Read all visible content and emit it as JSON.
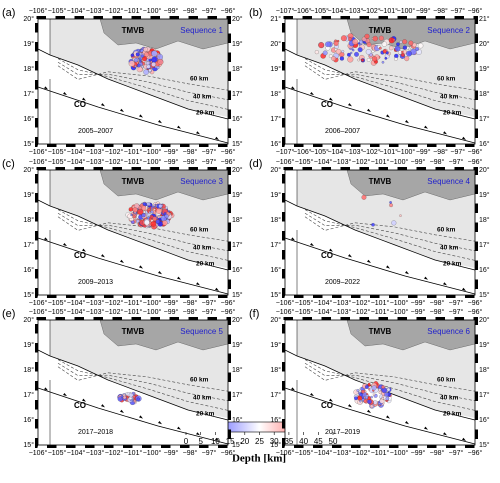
{
  "panels": [
    {
      "label": "(a)",
      "sequence": "Sequence 1",
      "period": "2005–2007",
      "lon_ticks": [
        "−106°",
        "−105°",
        "−104°",
        "−103°",
        "−102°",
        "−101°",
        "−100°",
        "−99°",
        "−98°",
        "−97°",
        "−96°"
      ],
      "lat_ticks": [
        "15°",
        "16°",
        "17°",
        "18°",
        "19°",
        "20°"
      ]
    },
    {
      "label": "(b)",
      "sequence": "Sequence 2",
      "period": "2006–2007",
      "lon_ticks": [
        "−107°",
        "−106°",
        "−105°",
        "−104°",
        "−103°",
        "−102°",
        "−101°",
        "−100°",
        "−99°",
        "−98°",
        "−97°",
        "−96°"
      ],
      "lat_ticks": [
        "16°",
        "17°",
        "18°",
        "19°",
        "20°",
        "21°"
      ]
    },
    {
      "label": "(c)",
      "sequence": "Sequence 3",
      "period": "2009–2013",
      "lon_ticks": [
        "−106°",
        "−105°",
        "−104°",
        "−103°",
        "−102°",
        "−101°",
        "−100°",
        "−99°",
        "−98°",
        "−97°",
        "−96°"
      ],
      "lat_ticks": [
        "15°",
        "16°",
        "17°",
        "18°",
        "19°",
        "20°"
      ]
    },
    {
      "label": "(d)",
      "sequence": "Sequence 4",
      "period": "2009–2022",
      "lon_ticks": [
        "−106°",
        "−105°",
        "−104°",
        "−103°",
        "−102°",
        "−101°",
        "−100°",
        "−99°",
        "−98°",
        "−97°",
        "−96°"
      ],
      "lat_ticks": [
        "15°",
        "16°",
        "17°",
        "18°",
        "19°",
        "20°"
      ]
    },
    {
      "label": "(e)",
      "sequence": "Sequence 5",
      "period": "2017–2018",
      "lon_ticks": [
        "−106°",
        "−105°",
        "−104°",
        "−103°",
        "−102°",
        "−101°",
        "−100°",
        "−99°",
        "−98°",
        "−97°",
        "−96°"
      ],
      "lat_ticks": [
        "15°",
        "16°",
        "17°",
        "18°",
        "19°",
        "20°"
      ]
    },
    {
      "label": "(f)",
      "sequence": "Sequence 6",
      "period": "2017–2019",
      "lon_ticks": [
        "−106°",
        "−105°",
        "−104°",
        "−103°",
        "−102°",
        "−101°",
        "−100°",
        "−99°",
        "−98°",
        "−97°",
        "−96°"
      ],
      "lat_ticks": [
        "15°",
        "16°",
        "17°",
        "18°",
        "19°",
        "20°"
      ]
    }
  ],
  "map_labels": {
    "tmvb": "TMVB",
    "plate": "CO",
    "contours": [
      "60 km",
      "40 km",
      "20 km"
    ]
  },
  "colorbar": {
    "ticks": [
      0,
      5,
      10,
      15,
      20,
      25,
      30,
      35,
      40,
      45,
      50
    ],
    "label": "Depth [km]"
  }
}
